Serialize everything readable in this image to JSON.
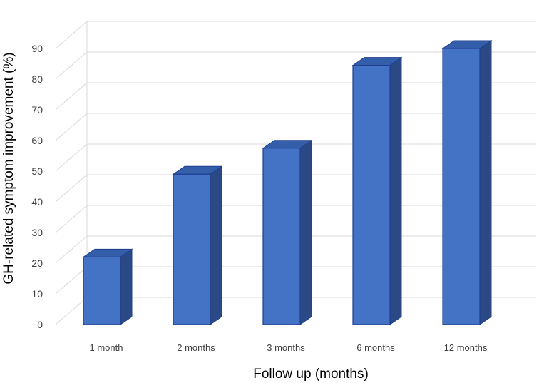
{
  "chart_data": {
    "type": "bar",
    "style": "3d-column",
    "title": "",
    "xlabel": "Follow up (months)",
    "ylabel": "GH-related symptom improvement (%)",
    "categories": [
      "1 month",
      "2 months",
      "3 months",
      "6 months",
      "12 months"
    ],
    "values": [
      22,
      49,
      57.5,
      84.5,
      90
    ],
    "ylim": [
      0,
      90
    ],
    "yticks": [
      0,
      10,
      20,
      30,
      40,
      50,
      60,
      70,
      80,
      90
    ],
    "grid": true,
    "legend": "none",
    "colors": {
      "bar_front": "#4472c4",
      "bar_side": "#2b4a85",
      "bar_top": "#345eaa",
      "bar_edge": "#1f3f8f",
      "grid": "#d9d9d9"
    }
  }
}
